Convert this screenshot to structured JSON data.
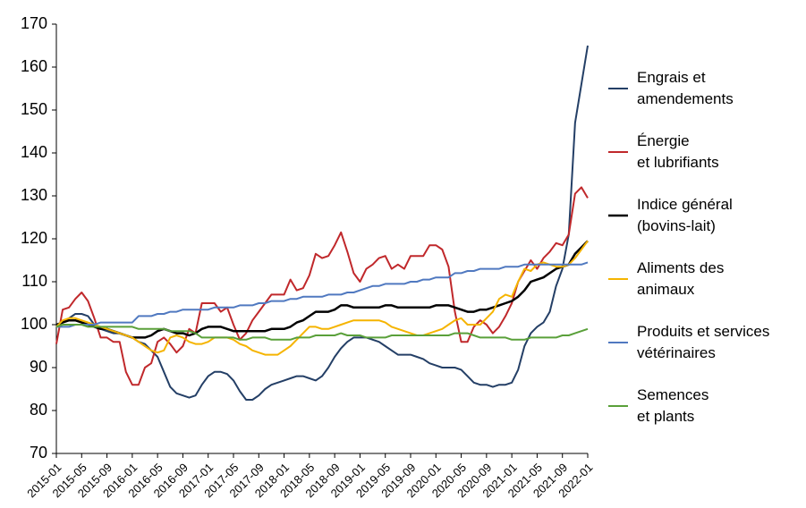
{
  "chart_data": {
    "type": "line",
    "categories": [
      "2015-01",
      null,
      null,
      null,
      "2015-05",
      null,
      null,
      null,
      "2015-09",
      null,
      null,
      null,
      "2016-01",
      null,
      null,
      null,
      "2016-05",
      null,
      null,
      null,
      "2016-09",
      null,
      null,
      null,
      "2017-01",
      null,
      null,
      null,
      "2017-05",
      null,
      null,
      null,
      "2017-09",
      null,
      null,
      null,
      "2018-01",
      null,
      null,
      null,
      "2018-05",
      null,
      null,
      null,
      "2018-09",
      null,
      null,
      null,
      "2019-01",
      null,
      null,
      null,
      "2019-05",
      null,
      null,
      null,
      "2019-09",
      null,
      null,
      null,
      "2020-01",
      null,
      null,
      null,
      "2020-05",
      null,
      null,
      null,
      "2020-09",
      null,
      null,
      null,
      "2021-01",
      null,
      null,
      null,
      "2021-05",
      null,
      null,
      null,
      "2021-09",
      null,
      null,
      null,
      "2022-01"
    ],
    "series": [
      {
        "name": "Engrais et\namendements",
        "color": "#243f66",
        "values": [
          100,
          100.5,
          101.5,
          102.5,
          102.5,
          102,
          100,
          99,
          98.5,
          98,
          98,
          97.5,
          97,
          96,
          95.5,
          94,
          92.5,
          89,
          85.5,
          84,
          83.5,
          83,
          83.5,
          86,
          88,
          89,
          89,
          88.5,
          87,
          84.5,
          82.5,
          82.5,
          83.5,
          85,
          86,
          86.5,
          87,
          87.5,
          88,
          88,
          87.5,
          87,
          88,
          90,
          92.5,
          94.5,
          96,
          97,
          97,
          97,
          96.5,
          96,
          95,
          94,
          93,
          93,
          93,
          92.5,
          92,
          91,
          90.5,
          90,
          90,
          90,
          89.5,
          88,
          86.5,
          86,
          86,
          85.5,
          86,
          86,
          86.5,
          89.5,
          95,
          98,
          99.5,
          100.5,
          103,
          109,
          113,
          121,
          147,
          156,
          165
        ]
      },
      {
        "name": "Énergie\net lubrifiants",
        "color": "#c0282b",
        "values": [
          95.5,
          103.5,
          104,
          106,
          107.5,
          105.5,
          101.5,
          97,
          97,
          96,
          96,
          89,
          86,
          86,
          90,
          91,
          96,
          97,
          95.5,
          93.5,
          95,
          99,
          98,
          105,
          105,
          105,
          103,
          104,
          100,
          96.5,
          98,
          101,
          103,
          105,
          107,
          107,
          107,
          110.5,
          108,
          108.5,
          111.5,
          116.5,
          115.5,
          116,
          118.5,
          121.5,
          117,
          112,
          110,
          113,
          114,
          115.5,
          116,
          113,
          114,
          113,
          116,
          116,
          116,
          118.5,
          118.5,
          117.5,
          113.5,
          103,
          96,
          96,
          99.5,
          101,
          100,
          98,
          99.5,
          102,
          105,
          110,
          112.5,
          115,
          113,
          115.5,
          117,
          119,
          118.5,
          121,
          130.5,
          132,
          129.5
        ]
      },
      {
        "name": "Indice général\n(bovins-lait)",
        "color": "#000000",
        "values": [
          100,
          100.5,
          101,
          101,
          100.5,
          100,
          99.5,
          99,
          99,
          98.5,
          98,
          97.5,
          97,
          97,
          97,
          97.5,
          98.5,
          99,
          98.5,
          98,
          98,
          97.5,
          98,
          99,
          99.5,
          99.5,
          99.5,
          99,
          98.5,
          98.5,
          98.5,
          98.5,
          98.5,
          98.5,
          99,
          99,
          99,
          99.5,
          100.5,
          101,
          102,
          103,
          103,
          103,
          103.5,
          104.5,
          104.5,
          104,
          104,
          104,
          104,
          104,
          104.5,
          104.5,
          104,
          104,
          104,
          104,
          104,
          104,
          104.5,
          104.5,
          104.5,
          104,
          103.5,
          103,
          103,
          103.5,
          103.5,
          104,
          104.5,
          105,
          105.5,
          106.5,
          108,
          110,
          110.5,
          111,
          112,
          113,
          113.5,
          114,
          116.5,
          118,
          119.5
        ]
      },
      {
        "name": "Aliments des\nanimaux",
        "color": "#f5b400",
        "values": [
          99.5,
          101,
          101.5,
          101.5,
          101,
          100.5,
          100,
          99.5,
          99,
          98.5,
          98,
          97.5,
          97,
          96,
          95,
          94,
          93.5,
          94,
          97,
          97.5,
          97,
          96,
          95.5,
          95.5,
          96,
          97,
          97,
          97,
          96.5,
          95.5,
          95,
          94,
          93.5,
          93,
          93,
          93,
          94,
          95,
          96.5,
          98,
          99.5,
          99.5,
          99,
          99,
          99.5,
          100,
          100.5,
          101,
          101,
          101,
          101,
          101,
          100.5,
          99.5,
          99,
          98.5,
          98,
          97.5,
          97.5,
          98,
          98.5,
          99,
          100,
          101,
          101.5,
          100,
          100,
          100,
          101.5,
          103,
          106,
          107,
          106.5,
          110,
          113,
          112.5,
          114,
          114.5,
          114,
          113.5,
          113.5,
          114,
          115.5,
          117.5,
          119.5
        ]
      },
      {
        "name": "Produits et services\nvétérinaires",
        "color": "#5079c0",
        "values": [
          99.5,
          99.5,
          99.5,
          100,
          100,
          100,
          100,
          100.5,
          100.5,
          100.5,
          100.5,
          100.5,
          100.5,
          102,
          102,
          102,
          102.5,
          102.5,
          103,
          103,
          103.5,
          103.5,
          103.5,
          103.5,
          103.5,
          104,
          104,
          104,
          104,
          104.5,
          104.5,
          104.5,
          105,
          105,
          105.5,
          105.5,
          105.5,
          106,
          106,
          106.5,
          106.5,
          106.5,
          106.5,
          107,
          107,
          107,
          107.5,
          107.5,
          108,
          108.5,
          109,
          109,
          109.5,
          109.5,
          109.5,
          109.5,
          110,
          110,
          110.5,
          110.5,
          111,
          111,
          111,
          112,
          112,
          112.5,
          112.5,
          113,
          113,
          113,
          113,
          113.5,
          113.5,
          113.5,
          114,
          114,
          114,
          114,
          114,
          114,
          114,
          114,
          114,
          114,
          114.5
        ]
      },
      {
        "name": "Semences\net plants",
        "color": "#5aa03a",
        "values": [
          99.5,
          100,
          100,
          100,
          100,
          99.5,
          99.5,
          99.5,
          99.5,
          99.5,
          99.5,
          99.5,
          99.5,
          99,
          99,
          99,
          99,
          99,
          98.5,
          98.5,
          98.5,
          98.5,
          98,
          97,
          97,
          97,
          97,
          97,
          97,
          96.5,
          96.5,
          97,
          97,
          97,
          96.5,
          96.5,
          96.5,
          96.5,
          97,
          97,
          97,
          97.5,
          97.5,
          97.5,
          97.5,
          98,
          97.5,
          97.5,
          97.5,
          97,
          97,
          97,
          97,
          97.5,
          97.5,
          97.5,
          97.5,
          97.5,
          97.5,
          97.5,
          97.5,
          97.5,
          97.5,
          98,
          98,
          98,
          97.5,
          97,
          97,
          97,
          97,
          97,
          96.5,
          96.5,
          96.5,
          97,
          97,
          97,
          97,
          97,
          97.5,
          97.5,
          98,
          98.5,
          99
        ]
      }
    ],
    "ylim": [
      70,
      170
    ],
    "yticks": [
      70,
      80,
      90,
      100,
      110,
      120,
      130,
      140,
      150,
      160,
      170
    ],
    "grid": false
  }
}
